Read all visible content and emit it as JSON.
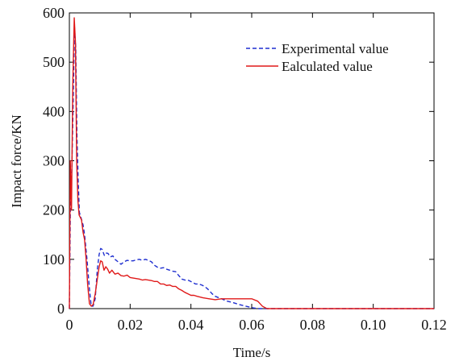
{
  "chart_data": {
    "type": "line",
    "title": "",
    "xlabel": "Time/s",
    "ylabel": "Impact force/KN",
    "xlim": [
      0,
      0.12
    ],
    "ylim": [
      0,
      600
    ],
    "xticks": [
      0,
      0.02,
      0.04,
      0.06,
      0.08,
      0.1,
      0.12
    ],
    "xtick_labels": [
      "0",
      "0.02",
      "0.04",
      "0.06",
      "0.08",
      "0.10",
      "0.12"
    ],
    "yticks": [
      0,
      100,
      200,
      300,
      400,
      500,
      600
    ],
    "ytick_labels": [
      "0",
      "100",
      "200",
      "300",
      "400",
      "500",
      "600"
    ],
    "grid": false,
    "legend_position": "top-right",
    "series": [
      {
        "name": "Experimental value",
        "color": "#1f2fd0",
        "dash": "dashed",
        "points": [
          [
            0,
            0
          ],
          [
            0.0004,
            250
          ],
          [
            0.0008,
            280
          ],
          [
            0.0012,
            400
          ],
          [
            0.0017,
            570
          ],
          [
            0.0021,
            530
          ],
          [
            0.0025,
            350
          ],
          [
            0.0029,
            260
          ],
          [
            0.0033,
            195
          ],
          [
            0.0038,
            185
          ],
          [
            0.0045,
            170
          ],
          [
            0.005,
            150
          ],
          [
            0.0058,
            100
          ],
          [
            0.0066,
            40
          ],
          [
            0.0072,
            5
          ],
          [
            0.0078,
            5
          ],
          [
            0.0085,
            20
          ],
          [
            0.0092,
            80
          ],
          [
            0.0098,
            110
          ],
          [
            0.0103,
            122
          ],
          [
            0.0108,
            120
          ],
          [
            0.0115,
            108
          ],
          [
            0.012,
            113
          ],
          [
            0.0127,
            112
          ],
          [
            0.0135,
            105
          ],
          [
            0.0143,
            107
          ],
          [
            0.015,
            100
          ],
          [
            0.016,
            95
          ],
          [
            0.017,
            90
          ],
          [
            0.018,
            95
          ],
          [
            0.019,
            98
          ],
          [
            0.02,
            97
          ],
          [
            0.021,
            97
          ],
          [
            0.022,
            99
          ],
          [
            0.023,
            100
          ],
          [
            0.024,
            98
          ],
          [
            0.025,
            100
          ],
          [
            0.026,
            98
          ],
          [
            0.027,
            95
          ],
          [
            0.028,
            88
          ],
          [
            0.029,
            84
          ],
          [
            0.03,
            82
          ],
          [
            0.031,
            83
          ],
          [
            0.032,
            80
          ],
          [
            0.033,
            78
          ],
          [
            0.034,
            76
          ],
          [
            0.035,
            75
          ],
          [
            0.036,
            67
          ],
          [
            0.037,
            60
          ],
          [
            0.038,
            58
          ],
          [
            0.039,
            58
          ],
          [
            0.04,
            55
          ],
          [
            0.0415,
            50
          ],
          [
            0.0425,
            50
          ],
          [
            0.0435,
            48
          ],
          [
            0.0445,
            45
          ],
          [
            0.0455,
            40
          ],
          [
            0.047,
            30
          ],
          [
            0.048,
            25
          ],
          [
            0.05,
            20
          ],
          [
            0.052,
            15
          ],
          [
            0.054,
            12
          ],
          [
            0.056,
            8
          ],
          [
            0.058,
            5
          ],
          [
            0.06,
            2
          ],
          [
            0.062,
            0
          ],
          [
            0.12,
            0
          ]
        ]
      },
      {
        "name": "Ealculated value",
        "color": "#e01919",
        "dash": "solid",
        "points": [
          [
            0,
            0
          ],
          [
            0.0003,
            300
          ],
          [
            0.0007,
            200
          ],
          [
            0.0011,
            450
          ],
          [
            0.0016,
            590
          ],
          [
            0.002,
            540
          ],
          [
            0.0024,
            300
          ],
          [
            0.0028,
            220
          ],
          [
            0.0032,
            190
          ],
          [
            0.004,
            180
          ],
          [
            0.0045,
            155
          ],
          [
            0.005,
            140
          ],
          [
            0.0055,
            100
          ],
          [
            0.006,
            50
          ],
          [
            0.0066,
            10
          ],
          [
            0.0072,
            5
          ],
          [
            0.0078,
            8
          ],
          [
            0.0085,
            30
          ],
          [
            0.0092,
            60
          ],
          [
            0.0098,
            85
          ],
          [
            0.0103,
            97
          ],
          [
            0.0108,
            95
          ],
          [
            0.0114,
            78
          ],
          [
            0.012,
            85
          ],
          [
            0.0126,
            80
          ],
          [
            0.0132,
            72
          ],
          [
            0.014,
            78
          ],
          [
            0.015,
            70
          ],
          [
            0.016,
            72
          ],
          [
            0.017,
            67
          ],
          [
            0.018,
            66
          ],
          [
            0.019,
            68
          ],
          [
            0.02,
            63
          ],
          [
            0.021,
            62
          ],
          [
            0.022,
            61
          ],
          [
            0.023,
            60
          ],
          [
            0.024,
            58
          ],
          [
            0.025,
            59
          ],
          [
            0.026,
            58
          ],
          [
            0.027,
            57
          ],
          [
            0.028,
            55
          ],
          [
            0.029,
            55
          ],
          [
            0.03,
            50
          ],
          [
            0.031,
            50
          ],
          [
            0.032,
            47
          ],
          [
            0.033,
            48
          ],
          [
            0.034,
            45
          ],
          [
            0.035,
            45
          ],
          [
            0.036,
            40
          ],
          [
            0.037,
            37
          ],
          [
            0.038,
            33
          ],
          [
            0.039,
            30
          ],
          [
            0.04,
            27
          ],
          [
            0.041,
            27
          ],
          [
            0.042,
            25
          ],
          [
            0.044,
            22
          ],
          [
            0.046,
            20
          ],
          [
            0.048,
            18
          ],
          [
            0.05,
            20
          ],
          [
            0.052,
            20
          ],
          [
            0.054,
            20
          ],
          [
            0.056,
            20
          ],
          [
            0.058,
            20
          ],
          [
            0.06,
            20
          ],
          [
            0.062,
            15
          ],
          [
            0.0635,
            5
          ],
          [
            0.065,
            0
          ],
          [
            0.12,
            0
          ]
        ]
      }
    ]
  }
}
